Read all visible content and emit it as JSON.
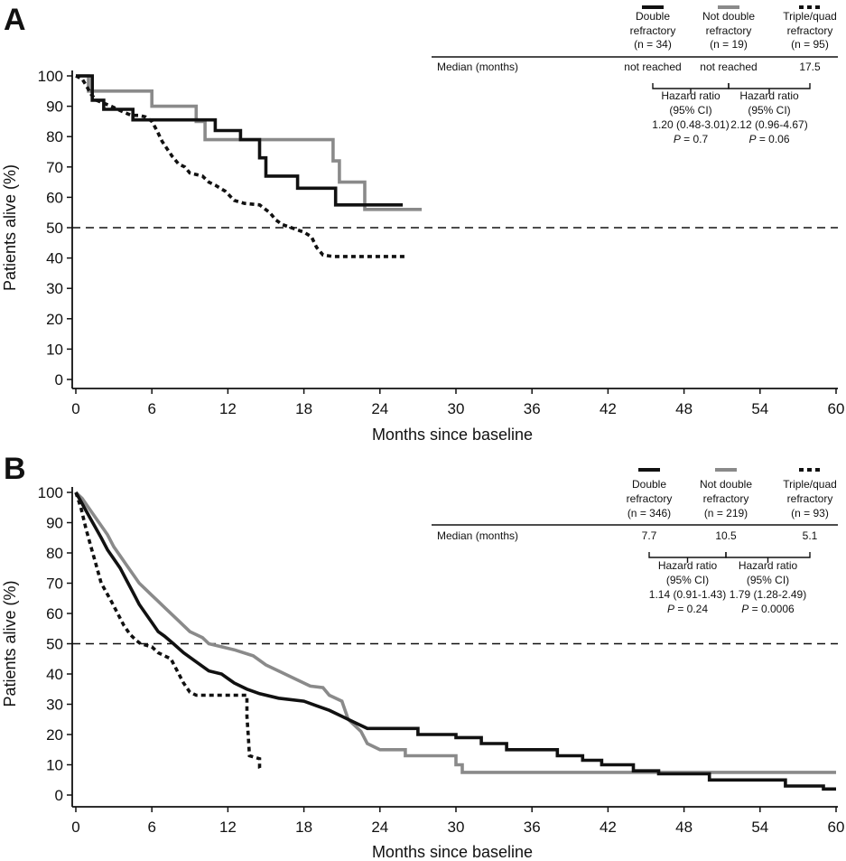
{
  "colors": {
    "double_refractory": "#111111",
    "not_double_refractory": "#8a8a8a",
    "triple_quad_refractory": "#111111",
    "reference_line": "#111111"
  },
  "chart_data": [
    {
      "panel": "A",
      "type": "line",
      "xlabel": "Months since baseline",
      "ylabel": "Patients alive (%)",
      "xlim": [
        0,
        60
      ],
      "ylim": [
        0,
        100
      ],
      "xticks": [
        "0",
        "6",
        "12",
        "18",
        "24",
        "30",
        "36",
        "42",
        "48",
        "54",
        "60"
      ],
      "yticks": [
        "0",
        "10",
        "20",
        "30",
        "40",
        "50",
        "60",
        "70",
        "80",
        "90",
        "100"
      ],
      "reference_line_y": 50,
      "legend": [
        {
          "name_line1": "Double",
          "name_line2": "refractory",
          "n": "(n = 34)",
          "style": "solid-black"
        },
        {
          "name_line1": "Not double",
          "name_line2": "refractory",
          "n": "(n = 19)",
          "style": "solid-gray"
        },
        {
          "name_line1": "Triple/quad",
          "name_line2": "refractory",
          "n": "(n = 95)",
          "style": "dashed-black"
        }
      ],
      "median_label": "Median (months)",
      "medians": [
        "not reached",
        "not reached",
        "17.5"
      ],
      "comparisons": [
        {
          "label1": "Hazard ratio",
          "label2": "(95% CI)",
          "hr": "1.20 (0.48-3.01)",
          "p_label": "P",
          "p_value": " = 0.7"
        },
        {
          "label1": "Hazard ratio",
          "label2": "(95% CI)",
          "hr": "2.12 (0.96-4.67)",
          "p_label": "P",
          "p_value": " = 0.06"
        }
      ],
      "series": [
        {
          "key": "double_refractory",
          "style": "solid-black",
          "points": [
            [
              0,
              100
            ],
            [
              1.3,
              100
            ],
            [
              1.3,
              92
            ],
            [
              2.2,
              92
            ],
            [
              2.2,
              89
            ],
            [
              4.5,
              89
            ],
            [
              4.5,
              85.5
            ],
            [
              11,
              85.5
            ],
            [
              11,
              82
            ],
            [
              13,
              82
            ],
            [
              13,
              79
            ],
            [
              14.5,
              79
            ],
            [
              14.5,
              73
            ],
            [
              15,
              73
            ],
            [
              15,
              67
            ],
            [
              17.5,
              67
            ],
            [
              17.5,
              63
            ],
            [
              20.5,
              63
            ],
            [
              20.5,
              57.5
            ],
            [
              25.8,
              57.5
            ]
          ]
        },
        {
          "key": "not_double_refractory",
          "style": "solid-gray",
          "points": [
            [
              0,
              100
            ],
            [
              1,
              100
            ],
            [
              1,
              95
            ],
            [
              6,
              95
            ],
            [
              6,
              90
            ],
            [
              9.5,
              90
            ],
            [
              9.5,
              85
            ],
            [
              10.2,
              85
            ],
            [
              10.2,
              79
            ],
            [
              20.3,
              79
            ],
            [
              20.3,
              72
            ],
            [
              20.8,
              72
            ],
            [
              20.8,
              65
            ],
            [
              22.8,
              65
            ],
            [
              22.8,
              56
            ],
            [
              27.3,
              56
            ]
          ]
        },
        {
          "key": "triple_quad_refractory",
          "style": "dashed-black",
          "points": [
            [
              0,
              100
            ],
            [
              0.5,
              99
            ],
            [
              0.8,
              97
            ],
            [
              1.2,
              94
            ],
            [
              1.6,
              92
            ],
            [
              2.2,
              91
            ],
            [
              2.8,
              90
            ],
            [
              3.3,
              89
            ],
            [
              3.8,
              88
            ],
            [
              4.4,
              87
            ],
            [
              5,
              87
            ],
            [
              5.5,
              86.5
            ],
            [
              6,
              85
            ],
            [
              6.4,
              82
            ],
            [
              6.8,
              78.5
            ],
            [
              7.2,
              76
            ],
            [
              7.6,
              73.5
            ],
            [
              8.1,
              71
            ],
            [
              8.6,
              70
            ],
            [
              9,
              68
            ],
            [
              10,
              67
            ],
            [
              10.5,
              65
            ],
            [
              11,
              64
            ],
            [
              11.8,
              62
            ],
            [
              12.5,
              59
            ],
            [
              13.3,
              58
            ],
            [
              14.5,
              57.5
            ],
            [
              15.3,
              55
            ],
            [
              15.8,
              52.5
            ],
            [
              16.3,
              51
            ],
            [
              17,
              50
            ],
            [
              18,
              48.5
            ],
            [
              18.6,
              47
            ],
            [
              19,
              43.5
            ],
            [
              19.5,
              41
            ],
            [
              20.3,
              40.5
            ],
            [
              26,
              40.5
            ]
          ]
        }
      ]
    },
    {
      "panel": "B",
      "type": "line",
      "xlabel": "Months since baseline",
      "ylabel": "Patients alive (%)",
      "xlim": [
        0,
        60
      ],
      "ylim": [
        0,
        100
      ],
      "xticks": [
        "0",
        "6",
        "12",
        "18",
        "24",
        "30",
        "36",
        "42",
        "48",
        "54",
        "60"
      ],
      "yticks": [
        "0",
        "10",
        "20",
        "30",
        "40",
        "50",
        "60",
        "70",
        "80",
        "90",
        "100"
      ],
      "reference_line_y": 50,
      "legend": [
        {
          "name_line1": "Double",
          "name_line2": "refractory",
          "n": "(n = 346)",
          "style": "solid-black"
        },
        {
          "name_line1": "Not double",
          "name_line2": "refractory",
          "n": "(n = 219)",
          "style": "solid-gray"
        },
        {
          "name_line1": "Triple/quad",
          "name_line2": "refractory",
          "n": "(n = 93)",
          "style": "dashed-black"
        }
      ],
      "median_label": "Median (months)",
      "medians": [
        "7.7",
        "10.5",
        "5.1"
      ],
      "comparisons": [
        {
          "label1": "Hazard ratio",
          "label2": "(95% CI)",
          "hr": "1.14 (0.91-1.43)",
          "p_label": "P",
          "p_value": " = 0.24"
        },
        {
          "label1": "Hazard ratio",
          "label2": "(95% CI)",
          "hr": "1.79 (1.28-2.49)",
          "p_label": "P",
          "p_value": " = 0.0006"
        }
      ],
      "series": [
        {
          "key": "double_refractory",
          "style": "solid-black",
          "points": [
            [
              0,
              100
            ],
            [
              0.4,
              97
            ],
            [
              0.8,
              94
            ],
            [
              1.2,
              91
            ],
            [
              1.6,
              88
            ],
            [
              2,
              85
            ],
            [
              2.5,
              81
            ],
            [
              3,
              78
            ],
            [
              3.5,
              75
            ],
            [
              4,
              71
            ],
            [
              4.5,
              67
            ],
            [
              5,
              63
            ],
            [
              5.5,
              60
            ],
            [
              6,
              57
            ],
            [
              6.5,
              54
            ],
            [
              7,
              52.5
            ],
            [
              7.7,
              50
            ],
            [
              8.5,
              47
            ],
            [
              9.5,
              44
            ],
            [
              10.5,
              41
            ],
            [
              11.5,
              40
            ],
            [
              12.5,
              37
            ],
            [
              13.5,
              35
            ],
            [
              14.5,
              33.5
            ],
            [
              16,
              32
            ],
            [
              18,
              31
            ],
            [
              19,
              29.5
            ],
            [
              20,
              28
            ],
            [
              21,
              26
            ],
            [
              22,
              24
            ],
            [
              23,
              22
            ],
            [
              27,
              22
            ],
            [
              27,
              20
            ],
            [
              30,
              20
            ],
            [
              30,
              19
            ],
            [
              32,
              19
            ],
            [
              32,
              17
            ],
            [
              34,
              17
            ],
            [
              34,
              15
            ],
            [
              38,
              15
            ],
            [
              38,
              13
            ],
            [
              40,
              13
            ],
            [
              40,
              11.5
            ],
            [
              41.5,
              11.5
            ],
            [
              41.5,
              10
            ],
            [
              44,
              10
            ],
            [
              44,
              8
            ],
            [
              46,
              8
            ],
            [
              46,
              7
            ],
            [
              50,
              7
            ],
            [
              50,
              5
            ],
            [
              56,
              5
            ],
            [
              56,
              3
            ],
            [
              59,
              3
            ],
            [
              59,
              2
            ],
            [
              60,
              2
            ]
          ]
        },
        {
          "key": "not_double_refractory",
          "style": "solid-gray",
          "points": [
            [
              0,
              100
            ],
            [
              0.5,
              98
            ],
            [
              1,
              95
            ],
            [
              1.5,
              92
            ],
            [
              2,
              89
            ],
            [
              2.5,
              86
            ],
            [
              3,
              82
            ],
            [
              3.5,
              79
            ],
            [
              4,
              76
            ],
            [
              4.5,
              73
            ],
            [
              5,
              70
            ],
            [
              5.5,
              68
            ],
            [
              6,
              66
            ],
            [
              6.5,
              64
            ],
            [
              7,
              62
            ],
            [
              8,
              58
            ],
            [
              9,
              54
            ],
            [
              10,
              52
            ],
            [
              10.5,
              50
            ],
            [
              11.5,
              49
            ],
            [
              12.5,
              48
            ],
            [
              14,
              46
            ],
            [
              15,
              43
            ],
            [
              16,
              41
            ],
            [
              17,
              39
            ],
            [
              18.5,
              36
            ],
            [
              19.5,
              35.5
            ],
            [
              20,
              33
            ],
            [
              21,
              31
            ],
            [
              21.5,
              25
            ],
            [
              22.5,
              21
            ],
            [
              23,
              17
            ],
            [
              24,
              15
            ],
            [
              26,
              15
            ],
            [
              26,
              13
            ],
            [
              30,
              13
            ],
            [
              30,
              10
            ],
            [
              30.5,
              10
            ],
            [
              30.5,
              7.5
            ],
            [
              60,
              7.5
            ]
          ]
        },
        {
          "key": "triple_quad_refractory",
          "style": "dashed-black",
          "points": [
            [
              0,
              100
            ],
            [
              0.4,
              95
            ],
            [
              0.8,
              88
            ],
            [
              1.2,
              82
            ],
            [
              1.6,
              76
            ],
            [
              2,
              70
            ],
            [
              2.4,
              67
            ],
            [
              2.8,
              64
            ],
            [
              3.3,
              60
            ],
            [
              3.8,
              56
            ],
            [
              4.3,
              53
            ],
            [
              4.8,
              51
            ],
            [
              5.1,
              50
            ],
            [
              6,
              49
            ],
            [
              6.5,
              47
            ],
            [
              7.5,
              45
            ],
            [
              8,
              41
            ],
            [
              8.5,
              37
            ],
            [
              9,
              34
            ],
            [
              9.5,
              33
            ],
            [
              13.5,
              33
            ],
            [
              13.5,
              26
            ],
            [
              13.6,
              20
            ],
            [
              13.7,
              13
            ],
            [
              14.5,
              12
            ],
            [
              14.5,
              9
            ],
            [
              14.6,
              8
            ]
          ]
        }
      ]
    }
  ]
}
